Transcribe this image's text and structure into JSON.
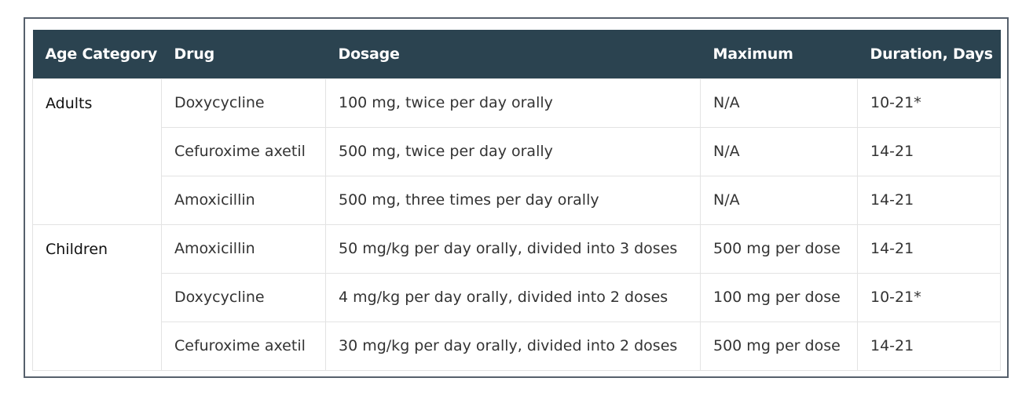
{
  "table": {
    "headers": [
      "Age Category",
      "Drug",
      "Dosage",
      "Maximum",
      "Duration, Days"
    ],
    "groups": [
      {
        "age_category": "Adults",
        "rows": [
          {
            "drug": "Doxycycline",
            "dosage": "100 mg, twice per day orally",
            "maximum": "N/A",
            "duration": "10-21*"
          },
          {
            "drug": "Cefuroxime axetil",
            "dosage": "500 mg, twice per day orally",
            "maximum": "N/A",
            "duration": "14-21"
          },
          {
            "drug": "Amoxicillin",
            "dosage": "500 mg, three times per day orally",
            "maximum": "N/A",
            "duration": "14-21"
          }
        ]
      },
      {
        "age_category": "Children",
        "rows": [
          {
            "drug": "Amoxicillin",
            "dosage": "50 mg/kg per day orally, divided into 3 doses",
            "maximum": "500 mg per dose",
            "duration": "14-21"
          },
          {
            "drug": "Doxycycline",
            "dosage": "4 mg/kg per day orally, divided into 2 doses",
            "maximum": "100 mg per dose",
            "duration": "10-21*"
          },
          {
            "drug": "Cefuroxime axetil",
            "dosage": "30 mg/kg per day orally, divided into 2 doses",
            "maximum": "500 mg per dose",
            "duration": "14-21"
          }
        ]
      }
    ],
    "colors": {
      "header_bg": "#2b4350",
      "header_text": "#ffffff",
      "frame_border": "#56606c",
      "cell_border": "#e3e3e3"
    }
  }
}
